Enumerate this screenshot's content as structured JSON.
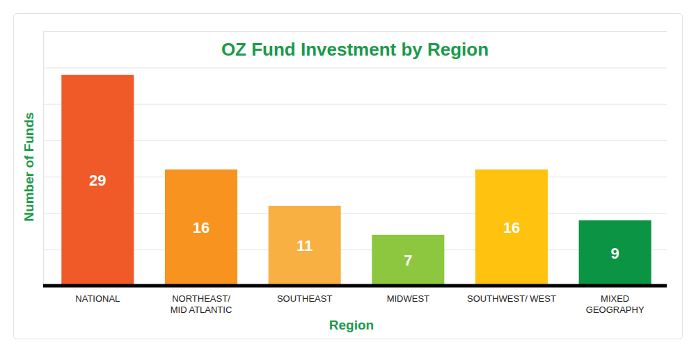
{
  "chart_data": {
    "type": "bar",
    "title": "OZ Fund Investment by Region",
    "x_label": "Region",
    "y_label": "Number of Funds",
    "categories": [
      "NATIONAL",
      "NORTHEAST/\nMID ATLANTIC",
      "SOUTHEAST",
      "MIDWEST",
      "SOUTHWEST/ WEST",
      "MIXED\nGEOGRAPHY"
    ],
    "values": [
      29,
      16,
      11,
      7,
      16,
      9
    ],
    "colors": [
      "#f05a28",
      "#f7931e",
      "#f9b043",
      "#8dc63f",
      "#ffc20e",
      "#0b9444"
    ],
    "ylim": [
      0,
      35
    ],
    "yticks": [
      0,
      5,
      10,
      15,
      20,
      25,
      30,
      35
    ],
    "grid": true,
    "data_labels": true,
    "tick_labels": "x"
  }
}
